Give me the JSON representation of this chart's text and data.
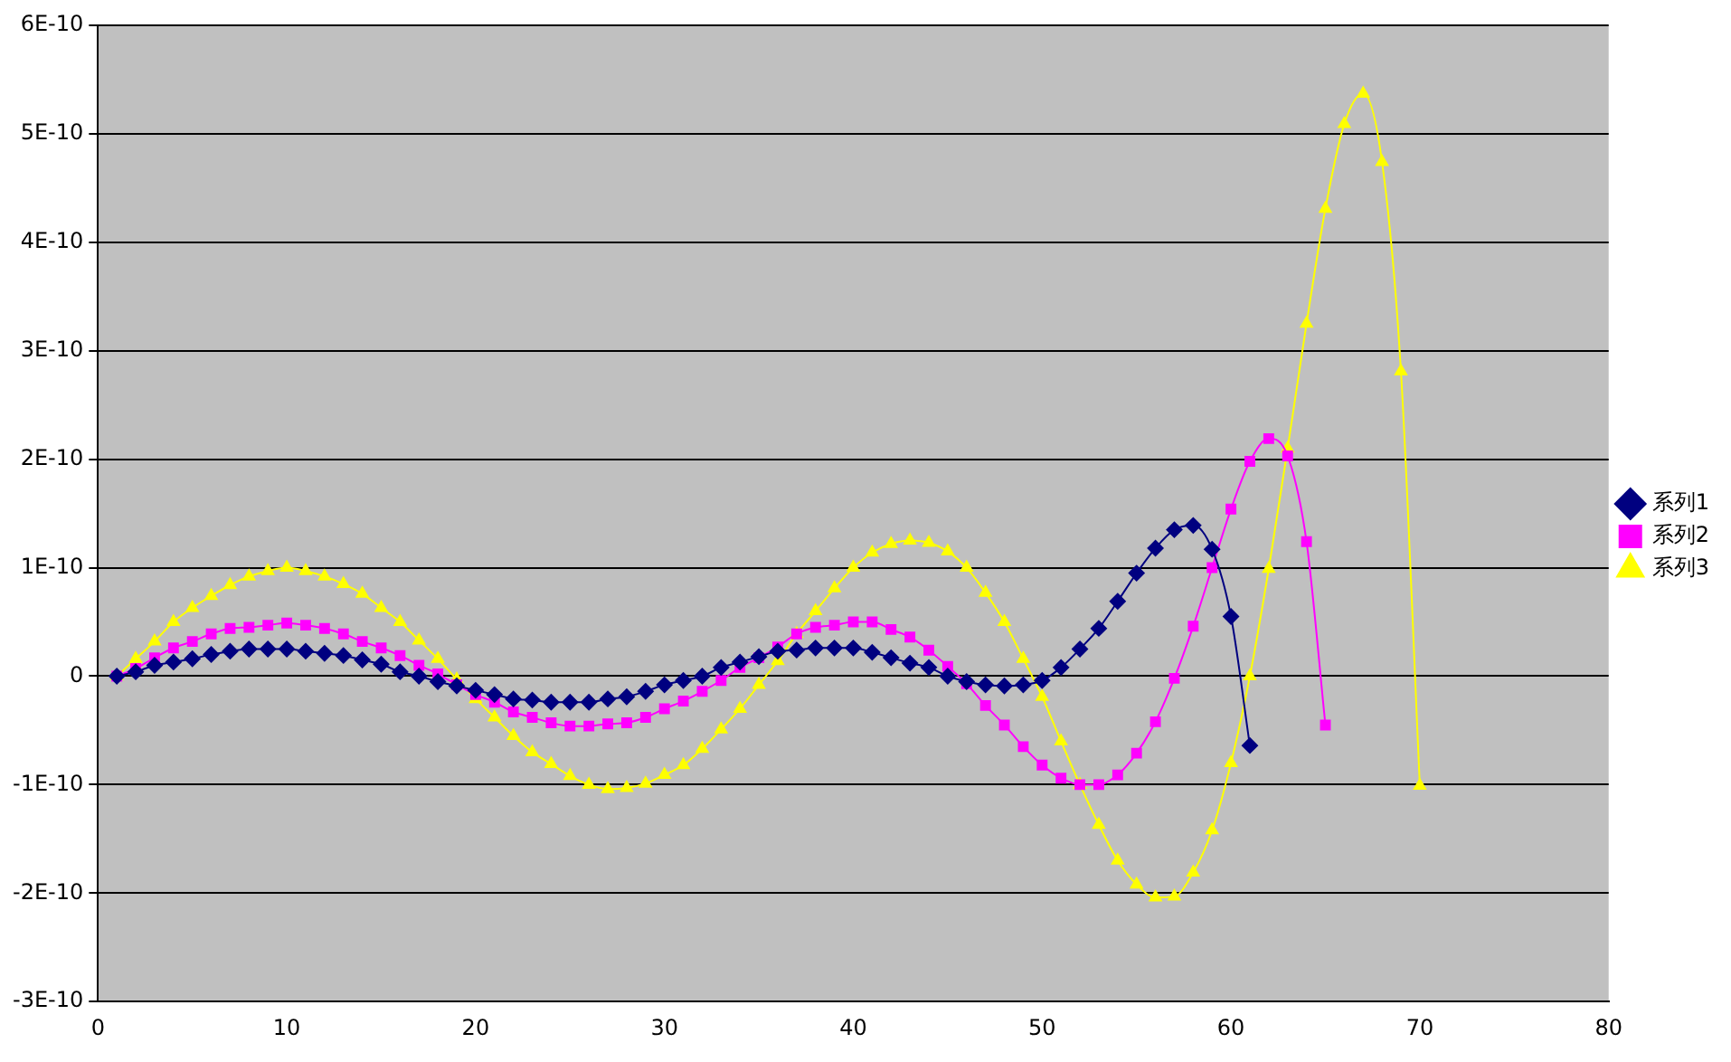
{
  "chart_data": {
    "type": "line",
    "legend": "right",
    "grid": "y",
    "line_style": "solid",
    "xlim": [
      0,
      80
    ],
    "xticks": [
      0,
      10,
      20,
      30,
      40,
      50,
      60,
      70,
      80
    ],
    "ylim": [
      -3e-10,
      6e-10
    ],
    "yticks": [
      {
        "value": -3e-10,
        "label": "-3E-10"
      },
      {
        "value": -2e-10,
        "label": "-2E-10"
      },
      {
        "value": -1e-10,
        "label": "-1E-10"
      },
      0,
      {
        "value": 1e-10,
        "label": "1E-10"
      },
      {
        "value": 2e-10,
        "label": "2E-10"
      },
      {
        "value": 3e-10,
        "label": "3E-10"
      },
      {
        "value": 4e-10,
        "label": "4E-10"
      },
      {
        "value": 5e-10,
        "label": "5E-10"
      },
      {
        "value": 6e-10,
        "label": "6E-10"
      }
    ],
    "series": [
      {
        "name": "系列1",
        "color": "#000080",
        "marker": "diamond",
        "x": [
          1,
          2,
          3,
          4,
          5,
          6,
          7,
          8,
          9,
          10,
          11,
          12,
          13,
          14,
          15,
          16,
          17,
          18,
          19,
          20,
          21,
          22,
          23,
          24,
          25,
          26,
          27,
          28,
          29,
          30,
          31,
          32,
          33,
          34,
          35,
          36,
          37,
          38,
          39,
          40,
          41,
          42,
          43,
          44,
          45,
          46,
          47,
          48,
          49,
          50,
          51,
          52,
          53,
          54,
          55,
          56,
          57,
          58,
          59,
          60,
          61
        ],
        "values": [
          0,
          4e-12,
          1e-11,
          1.3e-11,
          1.6e-11,
          2e-11,
          2.3e-11,
          2.5e-11,
          2.5e-11,
          2.5e-11,
          2.3e-11,
          2.1e-11,
          1.9e-11,
          1.5e-11,
          1.1e-11,
          4e-12,
          0,
          -5e-12,
          -9e-12,
          -1.3e-11,
          -1.7e-11,
          -2.1e-11,
          -2.2e-11,
          -2.4e-11,
          -2.4e-11,
          -2.4e-11,
          -2.1e-11,
          -1.9e-11,
          -1.4e-11,
          -8e-12,
          -4e-12,
          0,
          8e-12,
          1.3e-11,
          1.8e-11,
          2.3e-11,
          2.4e-11,
          2.6e-11,
          2.6e-11,
          2.6e-11,
          2.2e-11,
          1.7e-11,
          1.2e-11,
          8e-12,
          0,
          -5e-12,
          -8e-12,
          -9e-12,
          -8e-12,
          -4e-12,
          8e-12,
          2.5e-11,
          4.4e-11,
          6.9e-11,
          9.5e-11,
          1.18e-10,
          1.35e-10,
          1.39e-10,
          1.17e-10,
          5.5e-11,
          -6.4e-11
        ]
      },
      {
        "name": "系列2",
        "color": "#ff00ff",
        "marker": "square",
        "x": [
          1,
          2,
          3,
          4,
          5,
          6,
          7,
          8,
          9,
          10,
          11,
          12,
          13,
          14,
          15,
          16,
          17,
          18,
          19,
          20,
          21,
          22,
          23,
          24,
          25,
          26,
          27,
          28,
          29,
          30,
          31,
          32,
          33,
          34,
          35,
          36,
          37,
          38,
          39,
          40,
          41,
          42,
          43,
          44,
          45,
          46,
          47,
          48,
          49,
          50,
          51,
          52,
          53,
          54,
          55,
          56,
          57,
          58,
          59,
          60,
          61,
          62,
          63,
          64,
          65
        ],
        "values": [
          0,
          7e-12,
          1.7e-11,
          2.6e-11,
          3.2e-11,
          3.9e-11,
          4.4e-11,
          4.5e-11,
          4.7e-11,
          4.9e-11,
          4.7e-11,
          4.4e-11,
          3.9e-11,
          3.2e-11,
          2.6e-11,
          1.9e-11,
          1e-11,
          2e-12,
          -8e-12,
          -1.7e-11,
          -2.4e-11,
          -3.3e-11,
          -3.8e-11,
          -4.3e-11,
          -4.6e-11,
          -4.6e-11,
          -4.4e-11,
          -4.3e-11,
          -3.8e-11,
          -3e-11,
          -2.3e-11,
          -1.4e-11,
          -4e-12,
          8e-12,
          1.7e-11,
          2.7e-11,
          3.9e-11,
          4.5e-11,
          4.7e-11,
          5e-11,
          5e-11,
          4.3e-11,
          3.6e-11,
          2.4e-11,
          9e-12,
          -7e-12,
          -2.7e-11,
          -4.5e-11,
          -6.5e-11,
          -8.2e-11,
          -9.4e-11,
          -1e-10,
          -1e-10,
          -9.1e-11,
          -7.1e-11,
          -4.2e-11,
          -2e-12,
          4.6e-11,
          1e-10,
          1.54e-10,
          1.98e-10,
          2.19e-10,
          2.03e-10,
          1.24e-10,
          -4.5e-11
        ]
      },
      {
        "name": "系列3",
        "color": "#ffff00",
        "marker": "triangle",
        "x": [
          1,
          2,
          3,
          4,
          5,
          6,
          7,
          8,
          9,
          10,
          11,
          12,
          13,
          14,
          15,
          16,
          17,
          18,
          19,
          20,
          21,
          22,
          23,
          24,
          25,
          26,
          27,
          28,
          29,
          30,
          31,
          32,
          33,
          34,
          35,
          36,
          37,
          38,
          39,
          40,
          41,
          42,
          43,
          44,
          45,
          46,
          47,
          48,
          49,
          50,
          51,
          52,
          53,
          54,
          55,
          56,
          57,
          58,
          59,
          60,
          61,
          62,
          63,
          64,
          65,
          66,
          67,
          68,
          69,
          70
        ],
        "values": [
          0,
          1.6e-11,
          3.2e-11,
          5e-11,
          6.3e-11,
          7.4e-11,
          8.4e-11,
          9.2e-11,
          9.7e-11,
          1e-10,
          9.7e-11,
          9.2e-11,
          8.5e-11,
          7.6e-11,
          6.3e-11,
          5e-11,
          3.3e-11,
          1.6e-11,
          -3e-12,
          -2.1e-11,
          -3.8e-11,
          -5.5e-11,
          -7e-11,
          -8.1e-11,
          -9.2e-11,
          -1e-10,
          -1.04e-10,
          -1.03e-10,
          -9.9e-11,
          -9.1e-11,
          -8.2e-11,
          -6.7e-11,
          -4.9e-11,
          -3e-11,
          -8e-12,
          1.4e-11,
          3.9e-11,
          6e-11,
          8.1e-11,
          1e-10,
          1.14e-10,
          1.22e-10,
          1.25e-10,
          1.23e-10,
          1.15e-10,
          1e-10,
          7.7e-11,
          5e-11,
          1.6e-11,
          -1.9e-11,
          -6e-11,
          -1e-10,
          -1.37e-10,
          -1.7e-10,
          -1.92e-10,
          -2.04e-10,
          -2.03e-10,
          -1.81e-10,
          -1.42e-10,
          -8e-11,
          0,
          9.9e-11,
          2.1e-10,
          3.25e-10,
          4.31e-10,
          5.09e-10,
          5.37e-10,
          4.74e-10,
          2.81e-10,
          -1.01e-10
        ]
      }
    ]
  }
}
